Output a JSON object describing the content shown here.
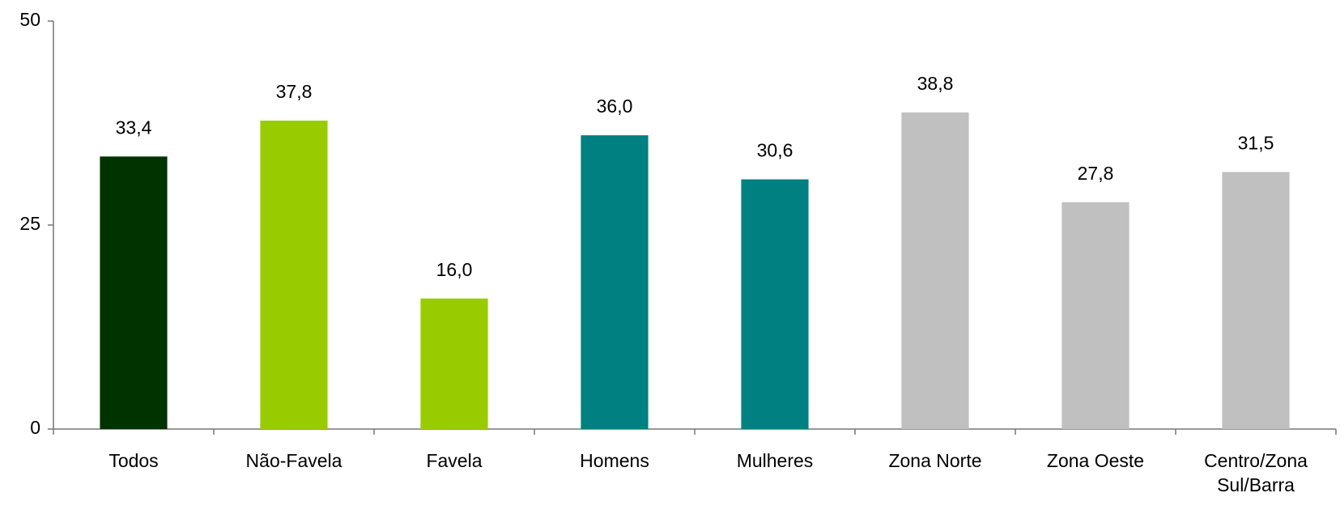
{
  "chart_data": {
    "type": "bar",
    "categories": [
      "Todos",
      "Não-Favela",
      "Favela",
      "Homens",
      "Mulheres",
      "Zona Norte",
      "Zona Oeste",
      "Centro/Zona Sul/Barra"
    ],
    "values": [
      33.4,
      37.8,
      16.0,
      36.0,
      30.6,
      38.8,
      27.8,
      31.5
    ],
    "value_labels": [
      "33,4",
      "37,8",
      "16,0",
      "36,0",
      "30,6",
      "38,8",
      "27,8",
      "31,5"
    ],
    "colors": [
      "#003300",
      "#99cc00",
      "#99cc00",
      "#008080",
      "#008080",
      "#c0c0c0",
      "#c0c0c0",
      "#c0c0c0"
    ],
    "ylim": [
      0,
      50
    ],
    "yticks": [
      0,
      25,
      50
    ],
    "grid": false
  }
}
